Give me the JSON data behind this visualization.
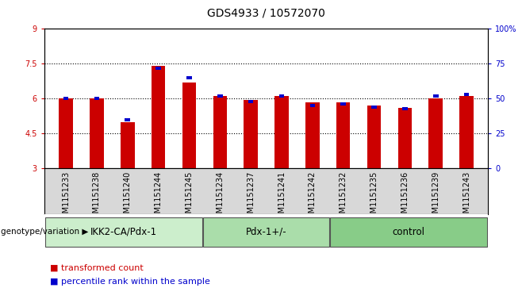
{
  "title": "GDS4933 / 10572070",
  "samples": [
    "GSM1151233",
    "GSM1151238",
    "GSM1151240",
    "GSM1151244",
    "GSM1151245",
    "GSM1151234",
    "GSM1151237",
    "GSM1151241",
    "GSM1151242",
    "GSM1151232",
    "GSM1151235",
    "GSM1151236",
    "GSM1151239",
    "GSM1151243"
  ],
  "red_values": [
    6.0,
    6.0,
    5.0,
    7.4,
    6.7,
    6.1,
    5.95,
    6.1,
    5.85,
    5.85,
    5.7,
    5.6,
    6.0,
    6.1
  ],
  "blue_values": [
    50,
    50,
    35,
    72,
    65,
    52,
    48,
    52,
    45,
    46,
    44,
    43,
    52,
    53
  ],
  "groups": [
    {
      "label": "IKK2-CA/Pdx-1",
      "start": 0,
      "end": 5,
      "color": "#cceecc"
    },
    {
      "label": "Pdx-1+/-",
      "start": 5,
      "end": 9,
      "color": "#aaddaa"
    },
    {
      "label": "control",
      "start": 9,
      "end": 14,
      "color": "#88cc88"
    }
  ],
  "ylim_left": [
    3,
    9
  ],
  "ylim_right": [
    0,
    100
  ],
  "yticks_left": [
    3,
    4.5,
    6,
    7.5,
    9
  ],
  "yticks_right": [
    0,
    25,
    50,
    75,
    100
  ],
  "bar_color_red": "#cc0000",
  "bar_color_blue": "#0000cc",
  "bar_width": 0.45,
  "genotype_label": "genotype/variation",
  "legend_red": "transformed count",
  "legend_blue": "percentile rank within the sample",
  "tick_area_color": "#d8d8d8",
  "dotted_line_color": "#000000",
  "font_size_title": 10,
  "font_size_ticks": 7,
  "font_size_group": 8.5,
  "font_size_legend": 8
}
